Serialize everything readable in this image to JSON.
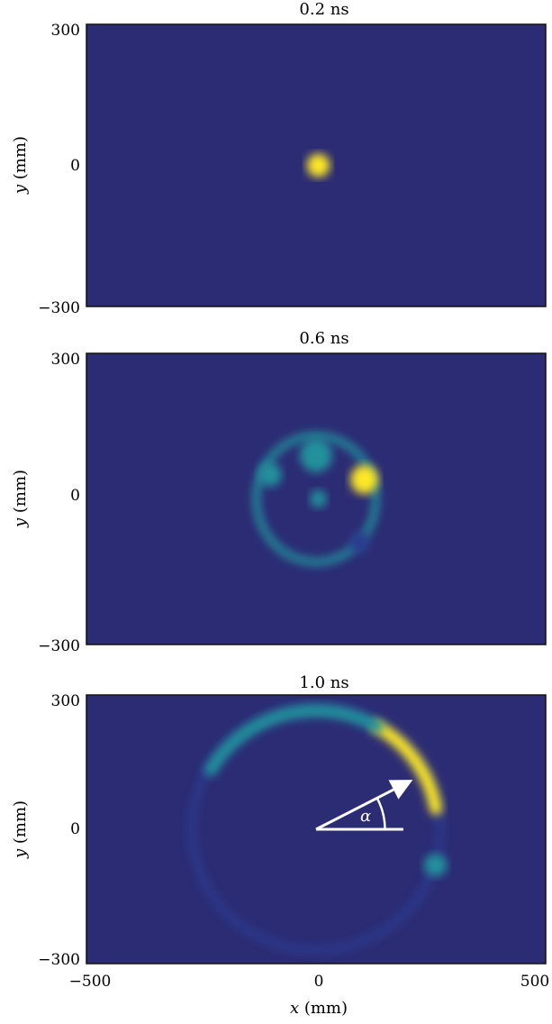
{
  "chart_data": [
    {
      "type": "heatmap",
      "title": "0.2 ns",
      "ylabel_var": "y",
      "ylabel_unit": "(mm)",
      "xlim": [
        -500,
        500
      ],
      "ylim": [
        -300,
        300
      ],
      "yticks": [
        "300",
        "0",
        "−300"
      ],
      "colormap": [
        "#2b1a6b",
        "#2c3b8e",
        "#21919c",
        "#35b779",
        "#fde725"
      ],
      "background": "#2c2c74",
      "features": [
        {
          "kind": "spot",
          "x": 5,
          "y": 0,
          "r": 25,
          "intensity": 1.0
        }
      ]
    },
    {
      "type": "heatmap",
      "title": "0.6 ns",
      "ylabel_var": "y",
      "ylabel_unit": "(mm)",
      "xlim": [
        -500,
        500
      ],
      "ylim": [
        -300,
        300
      ],
      "yticks": [
        "300",
        "0",
        "−300"
      ],
      "background": "#2c2c74",
      "features": [
        {
          "kind": "ring",
          "x": 0,
          "y": 0,
          "r": 130,
          "intensity": 0.4
        },
        {
          "kind": "spot",
          "x": 105,
          "y": 40,
          "r": 30,
          "intensity": 0.95
        },
        {
          "kind": "spot",
          "x": 0,
          "y": 90,
          "r": 35,
          "intensity": 0.6
        },
        {
          "kind": "spot",
          "x": -100,
          "y": 50,
          "r": 25,
          "intensity": 0.45
        },
        {
          "kind": "spot",
          "x": 5,
          "y": 0,
          "r": 18,
          "intensity": 0.6
        },
        {
          "kind": "spot",
          "x": 95,
          "y": -90,
          "r": 22,
          "intensity": 0.35
        }
      ]
    },
    {
      "type": "heatmap",
      "title": "1.0 ns",
      "ylabel_var": "y",
      "ylabel_unit": "(mm)",
      "xlabel_var": "x",
      "xlabel_unit": "(mm)",
      "xlim": [
        -500,
        500
      ],
      "ylim": [
        -300,
        300
      ],
      "yticks": [
        "300",
        "0",
        "−300"
      ],
      "xticks": [
        "−500",
        "0",
        "500"
      ],
      "background": "#2c2c74",
      "features": [
        {
          "kind": "ring",
          "x": 0,
          "y": 0,
          "r": 270,
          "intensity": 0.35
        },
        {
          "kind": "arc",
          "x": 0,
          "y": 0,
          "r": 265,
          "from_deg": 10,
          "to_deg": 60,
          "intensity": 1.0
        },
        {
          "kind": "arc",
          "x": 0,
          "y": 0,
          "r": 265,
          "from_deg": 60,
          "to_deg": 150,
          "intensity": 0.55
        },
        {
          "kind": "spot",
          "x": 260,
          "y": -80,
          "r": 25,
          "intensity": 0.45
        }
      ],
      "annotation": {
        "label": "α",
        "arrow_to": [
          200,
          105
        ],
        "base_to": [
          190,
          0
        ]
      }
    }
  ]
}
